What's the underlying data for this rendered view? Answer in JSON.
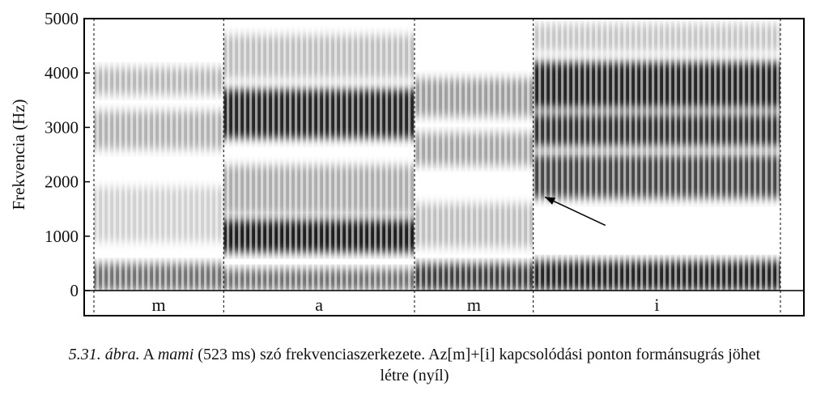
{
  "chart_data": {
    "type": "heatmap",
    "ylabel": "Frekvencia (Hz)",
    "ylim": [
      0,
      5000
    ],
    "yticks": [
      0,
      1000,
      2000,
      3000,
      4000,
      5000
    ],
    "ytick_labels": [
      "0",
      "1000",
      "2000",
      "3000",
      "4000",
      "5000"
    ],
    "segments": [
      {
        "label": "m",
        "start": 0.0,
        "end": 0.189
      },
      {
        "label": "a",
        "start": 0.189,
        "end": 0.467
      },
      {
        "label": "m",
        "start": 0.467,
        "end": 0.64
      },
      {
        "label": "i",
        "start": 0.64,
        "end": 1.0
      }
    ],
    "annotation": {
      "type": "arrow",
      "target_time": 0.657,
      "target_hz": 1720,
      "from_time": 0.745,
      "from_hz": 1200
    }
  },
  "caption": {
    "label": "5.31. ábra.",
    "before": " A ",
    "word": "mami",
    "after_word": " (523 ms) szó frekvenciaszerkezete. Az[m]+[i] kapcsolódási ponton formánsugrás jöhet",
    "line2": "létre (nyíl)"
  }
}
